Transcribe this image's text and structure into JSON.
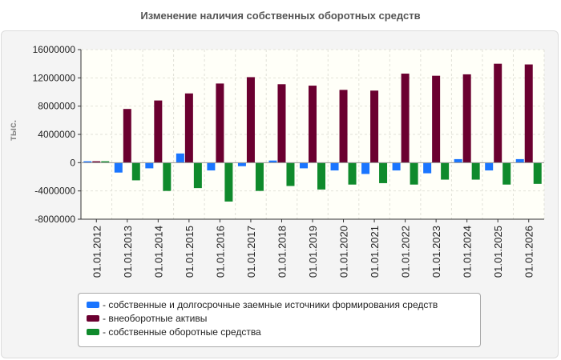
{
  "chart_data": {
    "type": "bar",
    "title": "Изменение наличия собственных оборотных средств",
    "ylabel": "тыс.",
    "xlabel": "",
    "ylim": [
      -8000000,
      16000000
    ],
    "yticks": [
      16000000,
      12000000,
      8000000,
      4000000,
      0,
      -4000000,
      -8000000
    ],
    "y_tick_labels": [
      "16000000",
      "12000000",
      "8000000",
      "4000000",
      "0",
      "-4000000",
      "-8000000"
    ],
    "grid": true,
    "legend_position": "bottom",
    "categories": [
      "01.01.2012",
      "01.01.2013",
      "01.01.2014",
      "01.01.2015",
      "01.01.2016",
      "01.01.2017",
      "01.01.2018",
      "01.01.2019",
      "01.01.2020",
      "01.01.2021",
      "01.01.2022",
      "01.01.2023",
      "01.01.2024",
      "01.01.2025",
      "01.01.2026"
    ],
    "series": [
      {
        "name": "- собственные и долгосрочные заемные источники формирования средств",
        "color": "#1a75ff",
        "values": [
          200000,
          -1400000,
          -800000,
          1300000,
          -1100000,
          -500000,
          300000,
          -800000,
          -1100000,
          -1600000,
          -1100000,
          -1500000,
          500000,
          -1100000,
          500000
        ]
      },
      {
        "name": "- внеоборотные активы",
        "color": "#6b0030",
        "values": [
          200000,
          7600000,
          8800000,
          9800000,
          11200000,
          12100000,
          11100000,
          10900000,
          10300000,
          10200000,
          12600000,
          12300000,
          12500000,
          14000000,
          13900000
        ]
      },
      {
        "name": "- собственные оборотные средства",
        "color": "#0f8a2c",
        "values": [
          200000,
          -2500000,
          -4000000,
          -3600000,
          -5500000,
          -4000000,
          -3300000,
          -3800000,
          -3100000,
          -2900000,
          -3100000,
          -2400000,
          -2400000,
          -3100000,
          -3000000
        ]
      }
    ]
  }
}
